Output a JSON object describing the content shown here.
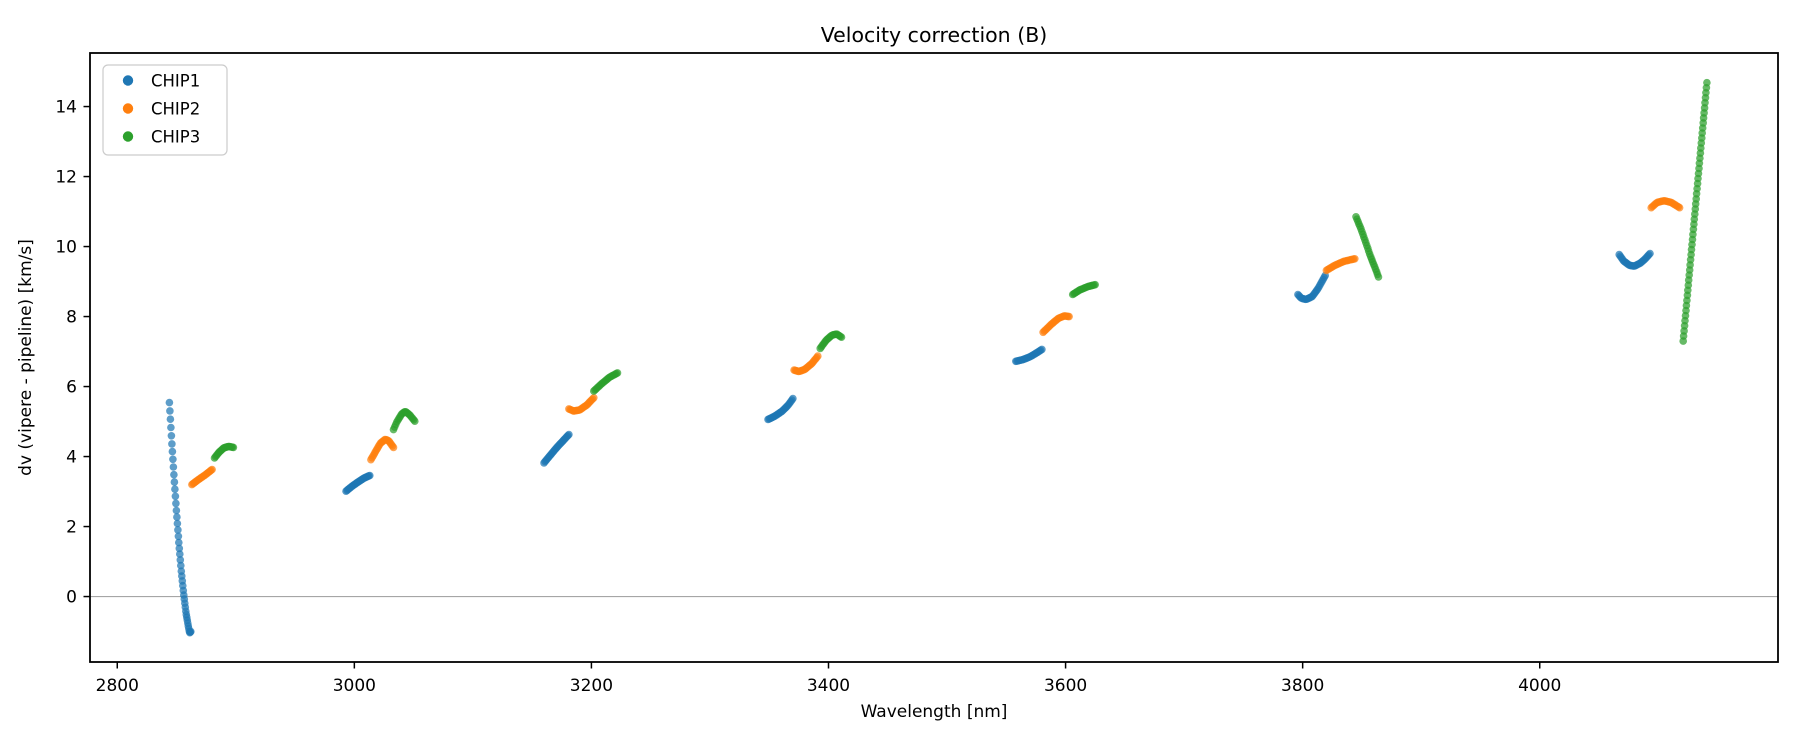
{
  "figure": {
    "title": "Velocity correction (B)",
    "xlabel": "Wavelength [nm]",
    "ylabel": "dv (vipere - pipeline) [km/s]"
  },
  "chart_data": {
    "type": "scatter",
    "title": "Velocity correction (B)",
    "xlabel": "Wavelength [nm]",
    "ylabel": "dv (vipere - pipeline) [km/s]",
    "xlim": [
      2777,
      4201
    ],
    "ylim": [
      -1.87,
      15.53
    ],
    "xticks": [
      2800,
      3000,
      3200,
      3400,
      3600,
      3800,
      4000
    ],
    "yticks": [
      0,
      2,
      4,
      6,
      8,
      10,
      12,
      14
    ],
    "grid": false,
    "zero_line_y": 0,
    "zero_line_color": "#a6a6a6",
    "legend_position": "upper left",
    "marker": "dot",
    "series": [
      {
        "name": "CHIP1",
        "color": "#1f77b4",
        "segments": [
          {
            "n": 44,
            "points": [
              [
                2844,
                5.54
              ],
              [
                2846,
                4.41
              ],
              [
                2848,
                3.36
              ],
              [
                2850,
                2.39
              ],
              [
                2852,
                1.52
              ],
              [
                2854,
                0.74
              ],
              [
                2856,
                0.08
              ],
              [
                2858,
                -0.47
              ],
              [
                2860,
                -0.86
              ],
              [
                2861,
                -1.04
              ],
              [
                2862,
                -1.0
              ]
            ]
          },
          {
            "n": 26,
            "points": [
              [
                2993,
                3.01
              ],
              [
                2998,
                3.15
              ],
              [
                3003,
                3.27
              ],
              [
                3008,
                3.38
              ],
              [
                3013,
                3.46
              ]
            ]
          },
          {
            "n": 26,
            "points": [
              [
                3160,
                3.82
              ],
              [
                3170,
                4.23
              ],
              [
                3181,
                4.63
              ]
            ]
          },
          {
            "n": 24,
            "points": [
              [
                3349,
                5.06
              ],
              [
                3355,
                5.16
              ],
              [
                3361,
                5.3
              ],
              [
                3366,
                5.47
              ],
              [
                3370,
                5.66
              ]
            ]
          },
          {
            "n": 24,
            "points": [
              [
                3558,
                6.72
              ],
              [
                3564,
                6.77
              ],
              [
                3570,
                6.85
              ],
              [
                3575,
                6.95
              ],
              [
                3580,
                7.06
              ]
            ]
          },
          {
            "n": 26,
            "points": [
              [
                3796,
                8.63
              ],
              [
                3799,
                8.52
              ],
              [
                3803,
                8.49
              ],
              [
                3808,
                8.57
              ],
              [
                3813,
                8.8
              ],
              [
                3819,
                9.17
              ]
            ]
          },
          {
            "n": 28,
            "points": [
              [
                4067,
                9.77
              ],
              [
                4071,
                9.58
              ],
              [
                4076,
                9.46
              ],
              [
                4080,
                9.44
              ],
              [
                4085,
                9.53
              ],
              [
                4089,
                9.65
              ],
              [
                4093,
                9.8
              ]
            ]
          }
        ]
      },
      {
        "name": "CHIP2",
        "color": "#ff7f0e",
        "segments": [
          {
            "n": 20,
            "points": [
              [
                2863,
                3.2
              ],
              [
                2868,
                3.33
              ],
              [
                2874,
                3.47
              ],
              [
                2880,
                3.63
              ]
            ]
          },
          {
            "n": 22,
            "points": [
              [
                3014,
                3.91
              ],
              [
                3018,
                4.15
              ],
              [
                3022,
                4.38
              ],
              [
                3026,
                4.49
              ],
              [
                3029,
                4.45
              ],
              [
                3033,
                4.26
              ]
            ]
          },
          {
            "n": 22,
            "points": [
              [
                3181,
                5.36
              ],
              [
                3185,
                5.3
              ],
              [
                3190,
                5.33
              ],
              [
                3196,
                5.47
              ],
              [
                3202,
                5.68
              ]
            ]
          },
          {
            "n": 22,
            "points": [
              [
                3371,
                6.47
              ],
              [
                3375,
                6.43
              ],
              [
                3380,
                6.49
              ],
              [
                3386,
                6.66
              ],
              [
                3391,
                6.87
              ]
            ]
          },
          {
            "n": 22,
            "points": [
              [
                3581,
                7.55
              ],
              [
                3588,
                7.78
              ],
              [
                3594,
                7.95
              ],
              [
                3599,
                8.02
              ],
              [
                3603,
                8.0
              ]
            ]
          },
          {
            "n": 22,
            "points": [
              [
                3820,
                9.32
              ],
              [
                3827,
                9.46
              ],
              [
                3835,
                9.58
              ],
              [
                3844,
                9.65
              ]
            ]
          },
          {
            "n": 22,
            "points": [
              [
                4094,
                11.11
              ],
              [
                4099,
                11.26
              ],
              [
                4105,
                11.31
              ],
              [
                4111,
                11.26
              ],
              [
                4118,
                11.11
              ]
            ]
          }
        ]
      },
      {
        "name": "CHIP3",
        "color": "#2ca02c",
        "segments": [
          {
            "n": 20,
            "points": [
              [
                2882,
                3.96
              ],
              [
                2886,
                4.13
              ],
              [
                2890,
                4.25
              ],
              [
                2894,
                4.29
              ],
              [
                2898,
                4.26
              ]
            ]
          },
          {
            "n": 20,
            "points": [
              [
                3033,
                4.77
              ],
              [
                3036,
                5.0
              ],
              [
                3040,
                5.22
              ],
              [
                3043,
                5.29
              ],
              [
                3047,
                5.18
              ],
              [
                3051,
                5.01
              ]
            ]
          },
          {
            "n": 20,
            "points": [
              [
                3202,
                5.87
              ],
              [
                3208,
                6.06
              ],
              [
                3215,
                6.26
              ],
              [
                3222,
                6.39
              ]
            ]
          },
          {
            "n": 20,
            "points": [
              [
                3393,
                7.09
              ],
              [
                3398,
                7.32
              ],
              [
                3403,
                7.47
              ],
              [
                3407,
                7.5
              ],
              [
                3411,
                7.41
              ]
            ]
          },
          {
            "n": 20,
            "points": [
              [
                3606,
                8.63
              ],
              [
                3612,
                8.76
              ],
              [
                3619,
                8.86
              ],
              [
                3625,
                8.91
              ]
            ]
          },
          {
            "n": 24,
            "points": [
              [
                3845,
                10.85
              ],
              [
                3849,
                10.52
              ],
              [
                3853,
                10.14
              ],
              [
                3857,
                9.74
              ],
              [
                3861,
                9.4
              ],
              [
                3864,
                9.13
              ]
            ]
          },
          {
            "n": 52,
            "points": [
              [
                4121,
                7.3
              ],
              [
                4126,
                9.15
              ],
              [
                4131,
                11.0
              ],
              [
                4136,
                12.85
              ],
              [
                4141,
                14.68
              ]
            ]
          }
        ]
      }
    ]
  }
}
